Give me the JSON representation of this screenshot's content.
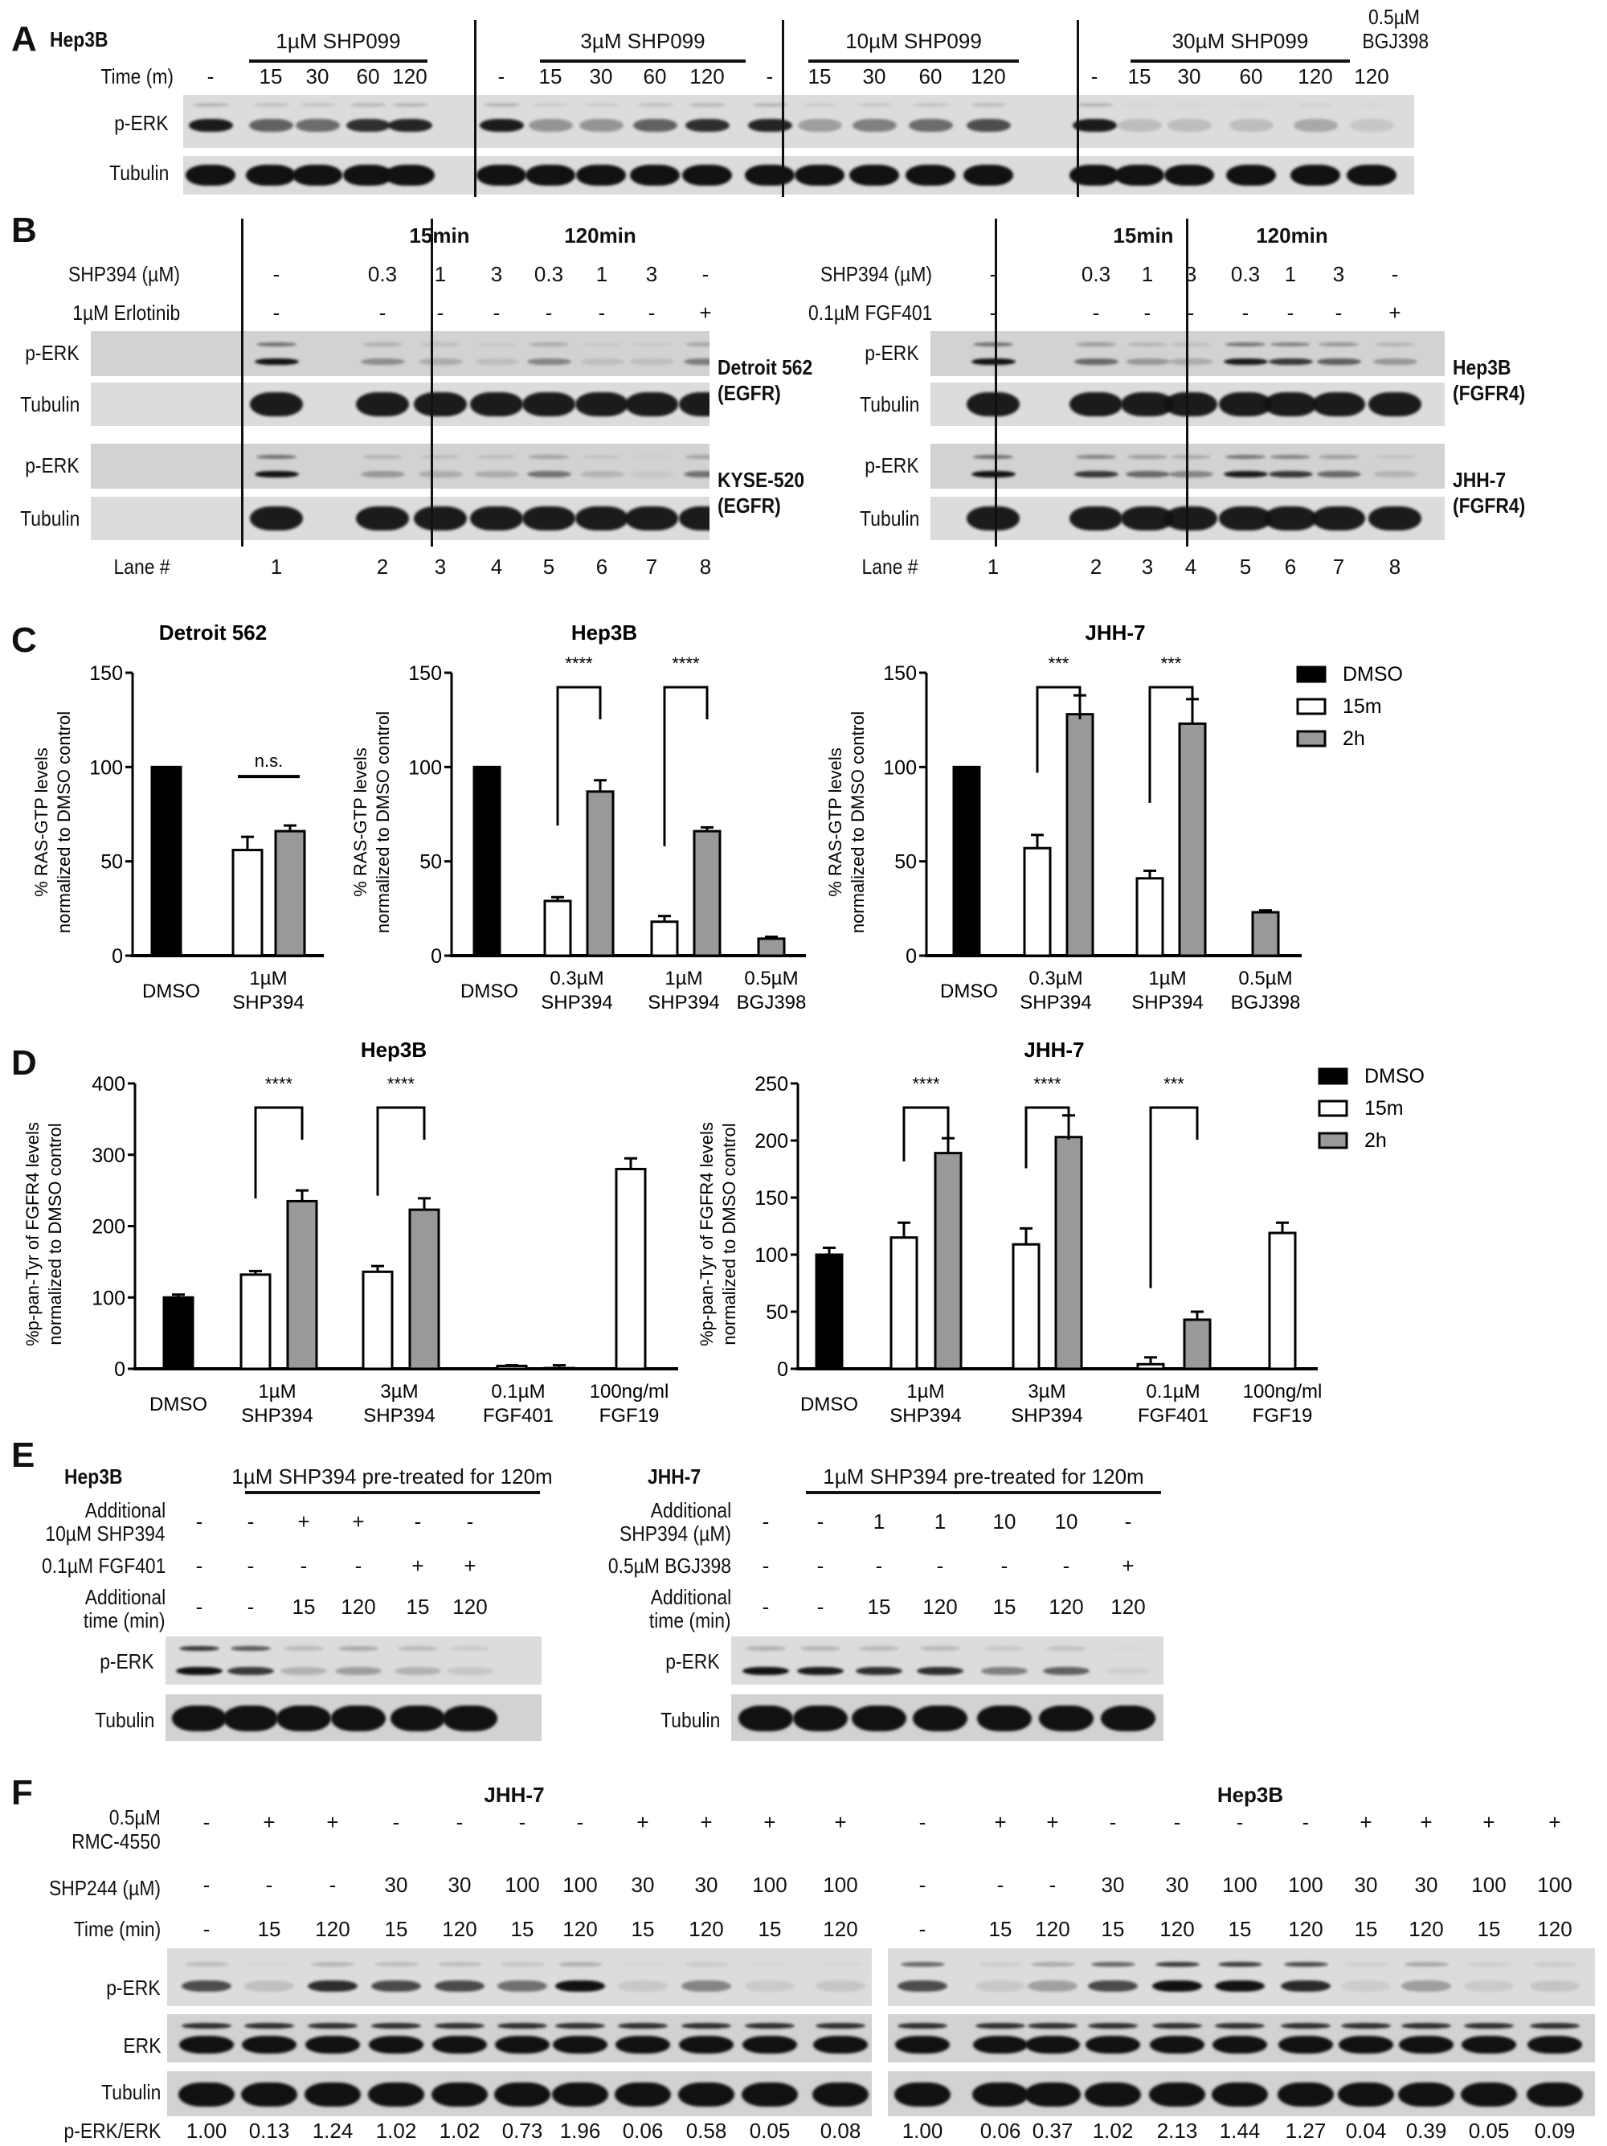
{
  "panels": {
    "A": {
      "letter": "A",
      "cell_line": "Hep3B",
      "time_label": "Time (m)",
      "groups": [
        "1µM SHP099",
        "3µM SHP099",
        "10µM SHP099",
        "30µM SHP099"
      ],
      "bgj_label_line1": "0.5µM",
      "bgj_label_line2": "BGJ398",
      "times": [
        "-",
        "15",
        "30",
        "60",
        "120",
        "-",
        "15",
        "30",
        "60",
        "120",
        "-",
        "15",
        "30",
        "60",
        "120",
        "-",
        "15",
        "30",
        "60",
        "120",
        "120"
      ],
      "rows": [
        "p-ERK",
        "Tubulin"
      ],
      "perk_intensity": [
        0.95,
        0.6,
        0.55,
        0.85,
        0.9,
        0.95,
        0.35,
        0.35,
        0.6,
        0.85,
        0.9,
        0.3,
        0.45,
        0.55,
        0.7,
        0.95,
        0.15,
        0.15,
        0.15,
        0.25,
        0.1
      ]
    },
    "B": {
      "letter": "B",
      "time_headers": [
        "15min",
        "120min"
      ],
      "left": {
        "row_labels": [
          "SHP394 (µM)",
          "1µM Erlotinib"
        ],
        "shp394": [
          "-",
          "0.3",
          "1",
          "3",
          "0.3",
          "1",
          "3",
          "-"
        ],
        "inhibitor": [
          "-",
          "-",
          "-",
          "-",
          "-",
          "-",
          "-",
          "+"
        ],
        "cell_lines": [
          {
            "name": "Detroit 562",
            "receptor": "(EGFR)",
            "perk": [
              1.0,
              0.35,
              0.2,
              0.1,
              0.4,
              0.1,
              0.1,
              0.45
            ]
          },
          {
            "name": "KYSE-520",
            "receptor": "(EGFR)",
            "perk": [
              1.0,
              0.3,
              0.2,
              0.2,
              0.5,
              0.15,
              0.05,
              0.5
            ]
          }
        ]
      },
      "right": {
        "row_labels": [
          "SHP394 (µM)",
          "0.1µM FGF401"
        ],
        "shp394": [
          "-",
          "0.3",
          "1",
          "3",
          "0.3",
          "1",
          "3",
          "-"
        ],
        "inhibitor": [
          "-",
          "-",
          "-",
          "-",
          "-",
          "-",
          "-",
          "+"
        ],
        "cell_lines": [
          {
            "name": "Hep3B",
            "receptor": "(FGFR4)",
            "perk": [
              1.0,
              0.55,
              0.3,
              0.2,
              0.95,
              0.8,
              0.6,
              0.3
            ]
          },
          {
            "name": "JHH-7",
            "receptor": "(FGFR4)",
            "perk": [
              1.0,
              0.8,
              0.55,
              0.4,
              0.95,
              0.8,
              0.55,
              0.15
            ]
          }
        ]
      },
      "row_names": [
        "p-ERK",
        "Tubulin"
      ],
      "lane_label": "Lane #",
      "lanes": [
        "1",
        "2",
        "3",
        "4",
        "5",
        "6",
        "7",
        "8"
      ]
    },
    "C": {
      "letter": "C"
    },
    "D": {
      "letter": "D"
    },
    "E": {
      "letter": "E",
      "left": {
        "cell_line": "Hep3B",
        "pretreat": "1µM SHP394 pre-treated for 120m",
        "row1_label_1": "Additional",
        "row1_label_2": "10µM SHP394",
        "row1": [
          "-",
          "-",
          "+",
          "+",
          "-",
          "-"
        ],
        "row2_label": "0.1µM FGF401",
        "row2": [
          "-",
          "-",
          "-",
          "-",
          "+",
          "+"
        ],
        "row3_label_1": "Additional",
        "row3_label_2": "time (min)",
        "row3": [
          "-",
          "-",
          "15",
          "120",
          "15",
          "120"
        ],
        "perk": [
          1.0,
          0.8,
          0.2,
          0.3,
          0.2,
          0.1
        ]
      },
      "right": {
        "cell_line": "JHH-7",
        "pretreat": "1µM SHP394 pre-treated for 120m",
        "row1_label_1": "Additional",
        "row1_label_2": "SHP394 (µM)",
        "row1": [
          "-",
          "-",
          "1",
          "1",
          "10",
          "10",
          "-"
        ],
        "row2_label": "0.5µM BGJ398",
        "row2": [
          "-",
          "-",
          "-",
          "-",
          "-",
          "-",
          "+"
        ],
        "row3_label_1": "Additional",
        "row3_label_2": "time (min)",
        "row3": [
          "-",
          "-",
          "15",
          "120",
          "15",
          "120",
          "120"
        ],
        "perk": [
          1.0,
          0.95,
          0.85,
          0.85,
          0.45,
          0.6,
          0.05
        ]
      },
      "row_names": [
        "p-ERK",
        "Tubulin"
      ]
    },
    "F": {
      "letter": "F",
      "rmc_label_1": "0.5µM",
      "rmc_label_2": "RMC-4550",
      "shp244_label": "SHP244 (µM)",
      "time_label": "Time (min)",
      "ratio_label": "p-ERK/ERK",
      "row_names": [
        "p-ERK",
        "ERK",
        "Tubulin"
      ],
      "rmc": [
        "-",
        "+",
        "+",
        "-",
        "-",
        "-",
        "-",
        "+",
        "+",
        "+",
        "+"
      ],
      "shp244": [
        "-",
        "-",
        "-",
        "30",
        "30",
        "100",
        "100",
        "30",
        "30",
        "100",
        "100"
      ],
      "time": [
        "-",
        "15",
        "120",
        "15",
        "120",
        "15",
        "120",
        "15",
        "120",
        "15",
        "120"
      ],
      "blots": [
        {
          "cell_line": "JHH-7",
          "ratios": [
            "1.00",
            "0.13",
            "1.24",
            "1.02",
            "1.02",
            "0.73",
            "1.96",
            "0.06",
            "0.58",
            "0.05",
            "0.08"
          ]
        },
        {
          "cell_line": "Hep3B",
          "ratios": [
            "1.00",
            "0.06",
            "0.37",
            "1.02",
            "2.13",
            "1.44",
            "1.27",
            "0.04",
            "0.39",
            "0.05",
            "0.09"
          ]
        }
      ]
    }
  },
  "legend": {
    "items": [
      {
        "label": "DMSO",
        "color": "#000000"
      },
      {
        "label": "15m",
        "color": "#ffffff"
      },
      {
        "label": "2h",
        "color": "#999999"
      }
    ]
  },
  "chart_data": [
    {
      "type": "bar",
      "panel": "C",
      "title": "Detroit 562",
      "ylabel": "% RAS-GTP levels normalized to DMSO control",
      "ylim": [
        0,
        150
      ],
      "yticks": [
        0,
        50,
        100,
        150
      ],
      "categories": [
        "DMSO",
        "1µM SHP394"
      ],
      "series": [
        {
          "name": "DMSO",
          "values": [
            100,
            null
          ],
          "errors": [
            0,
            null
          ]
        },
        {
          "name": "15m",
          "values": [
            null,
            56
          ],
          "errors": [
            null,
            7
          ]
        },
        {
          "name": "2h",
          "values": [
            null,
            66
          ],
          "errors": [
            null,
            3
          ]
        }
      ],
      "annotations": [
        {
          "text": "n.s.",
          "between": [
            "1µM SHP394 15m",
            "1µM SHP394 2h"
          ]
        }
      ]
    },
    {
      "type": "bar",
      "panel": "C",
      "title": "Hep3B",
      "ylabel": "% RAS-GTP levels normalized to DMSO control",
      "ylim": [
        0,
        150
      ],
      "yticks": [
        0,
        50,
        100,
        150
      ],
      "categories": [
        "DMSO",
        "0.3µM SHP394",
        "1µM SHP394",
        "0.5µM BGJ398"
      ],
      "series": [
        {
          "name": "DMSO",
          "values": [
            100,
            null,
            null,
            null
          ],
          "errors": [
            0,
            null,
            null,
            null
          ]
        },
        {
          "name": "15m",
          "values": [
            null,
            29,
            18,
            null
          ],
          "errors": [
            null,
            2,
            3,
            null
          ]
        },
        {
          "name": "2h",
          "values": [
            null,
            87,
            66,
            9
          ],
          "errors": [
            null,
            6,
            2,
            1
          ]
        }
      ],
      "annotations": [
        {
          "text": "****",
          "group": "0.3µM SHP394"
        },
        {
          "text": "****",
          "group": "1µM SHP394"
        }
      ]
    },
    {
      "type": "bar",
      "panel": "C",
      "title": "JHH-7",
      "ylabel": "% RAS-GTP levels normalized to DMSO control",
      "ylim": [
        0,
        150
      ],
      "yticks": [
        0,
        50,
        100,
        150
      ],
      "categories": [
        "DMSO",
        "0.3µM SHP394",
        "1µM SHP394",
        "0.5µM BGJ398"
      ],
      "series": [
        {
          "name": "DMSO",
          "values": [
            100,
            null,
            null,
            null
          ],
          "errors": [
            0,
            null,
            null,
            null
          ]
        },
        {
          "name": "15m",
          "values": [
            null,
            57,
            41,
            null
          ],
          "errors": [
            null,
            7,
            4,
            null
          ]
        },
        {
          "name": "2h",
          "values": [
            null,
            128,
            123,
            23
          ],
          "errors": [
            null,
            10,
            13,
            1
          ]
        }
      ],
      "annotations": [
        {
          "text": "***",
          "group": "0.3µM SHP394"
        },
        {
          "text": "***",
          "group": "1µM SHP394"
        }
      ]
    },
    {
      "type": "bar",
      "panel": "D",
      "title": "Hep3B",
      "ylabel": "%p-pan-Tyr of FGFR4 levels normalized to DMSO control",
      "ylim": [
        0,
        400
      ],
      "yticks": [
        0,
        100,
        200,
        300,
        400
      ],
      "categories": [
        "DMSO",
        "1µM SHP394",
        "3µM SHP394",
        "0.1µM FGF401",
        "100ng/ml FGF19"
      ],
      "series": [
        {
          "name": "DMSO",
          "values": [
            100,
            null,
            null,
            null,
            null
          ],
          "errors": [
            4,
            null,
            null,
            null,
            null
          ]
        },
        {
          "name": "15m",
          "values": [
            null,
            132,
            136,
            4,
            280
          ],
          "errors": [
            null,
            5,
            8,
            1,
            15
          ]
        },
        {
          "name": "2h",
          "values": [
            null,
            235,
            223,
            1,
            null
          ],
          "errors": [
            null,
            15,
            16,
            4,
            null
          ]
        }
      ],
      "annotations": [
        {
          "text": "****",
          "group": "1µM SHP394"
        },
        {
          "text": "****",
          "group": "3µM SHP394"
        }
      ]
    },
    {
      "type": "bar",
      "panel": "D",
      "title": "JHH-7",
      "ylabel": "%p-pan-Tyr of FGFR4 levels normalized to DMSO control",
      "ylim": [
        0,
        250
      ],
      "yticks": [
        0,
        50,
        100,
        150,
        200,
        250
      ],
      "categories": [
        "DMSO",
        "1µM SHP394",
        "3µM SHP394",
        "0.1µM FGF401",
        "100ng/ml FGF19"
      ],
      "series": [
        {
          "name": "DMSO",
          "values": [
            100,
            null,
            null,
            null,
            null
          ],
          "errors": [
            6,
            null,
            null,
            null,
            null
          ]
        },
        {
          "name": "15m",
          "values": [
            null,
            115,
            109,
            4,
            119
          ],
          "errors": [
            null,
            13,
            14,
            6,
            9
          ]
        },
        {
          "name": "2h",
          "values": [
            null,
            189,
            203,
            43,
            null
          ],
          "errors": [
            null,
            13,
            19,
            7,
            null
          ]
        }
      ],
      "annotations": [
        {
          "text": "****",
          "group": "1µM SHP394"
        },
        {
          "text": "****",
          "group": "3µM SHP394"
        },
        {
          "text": "***",
          "group": "0.1µM FGF401"
        }
      ]
    }
  ]
}
